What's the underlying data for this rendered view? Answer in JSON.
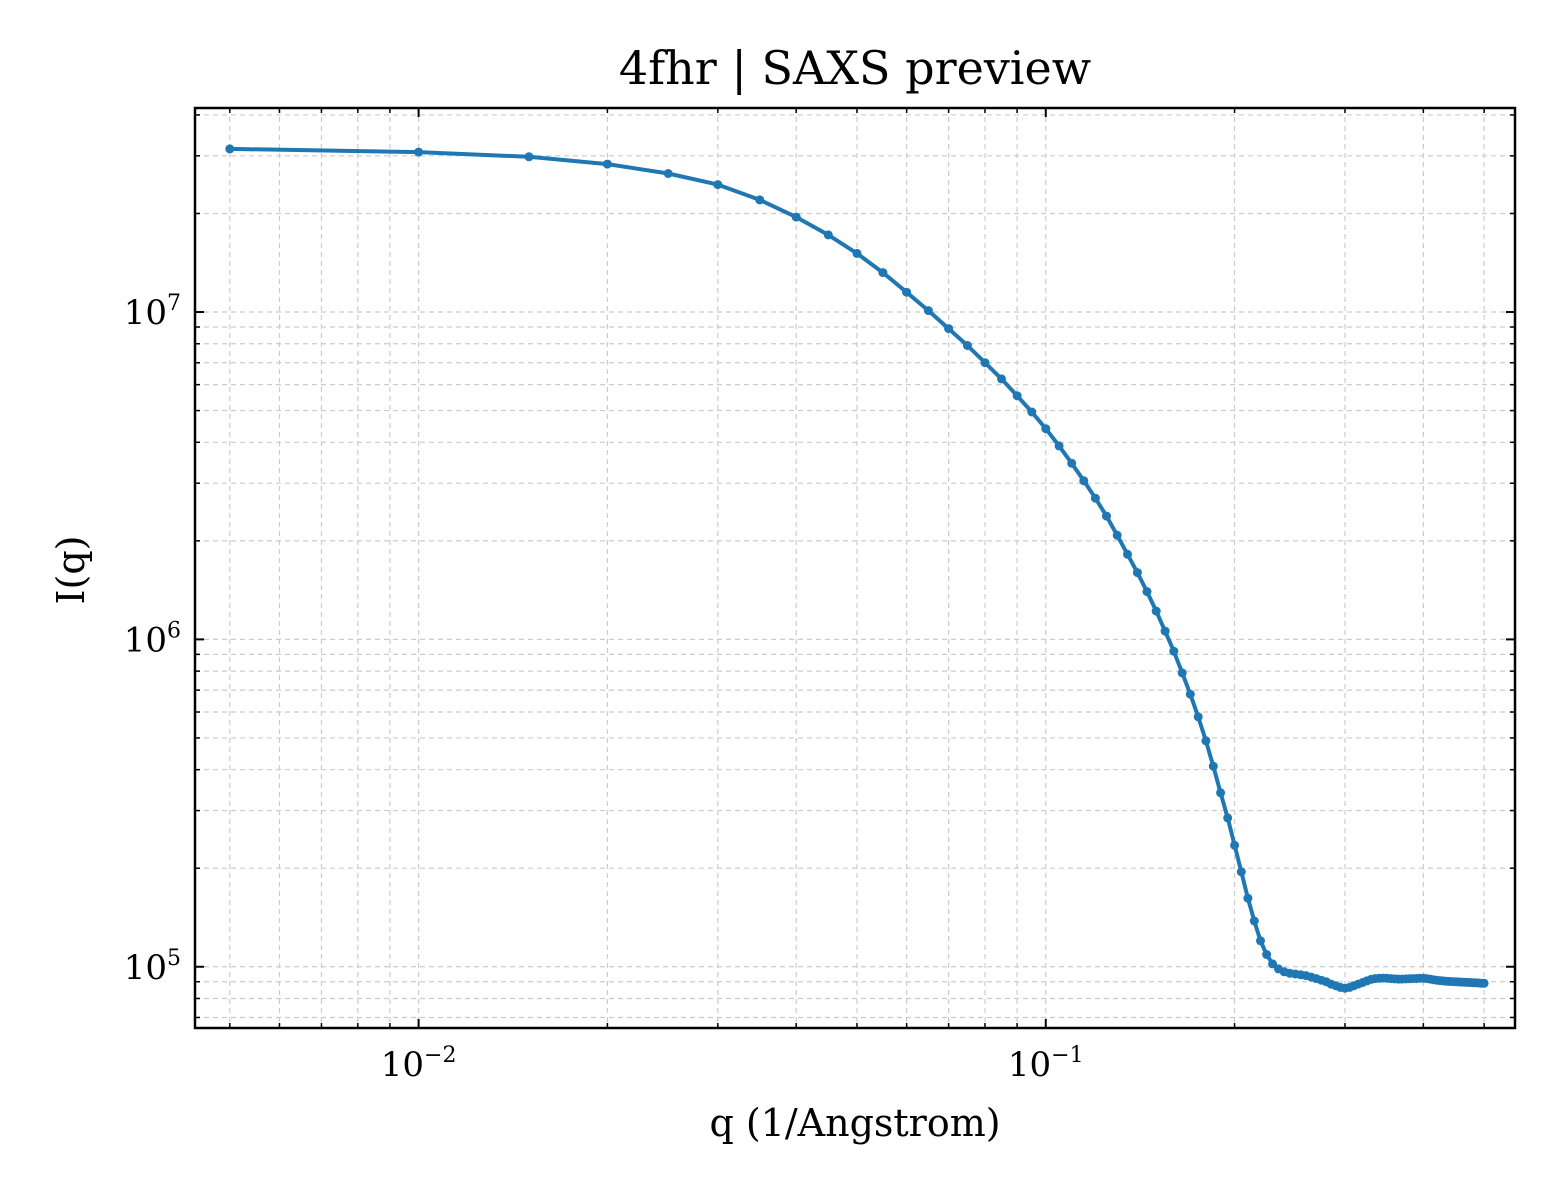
{
  "chart_data": {
    "type": "line",
    "title": "4fhr | SAXS preview",
    "xlabel": "q (1/Angstrom)",
    "ylabel": "I(q)",
    "xscale": "log",
    "yscale": "log",
    "xlim": [
      0.0044,
      0.56
    ],
    "ylim": [
      65000,
      42000000
    ],
    "grid": true,
    "grid_style": "dashed",
    "legend": "none",
    "line_color": "#1f77b4",
    "marker": "circle",
    "x_ticks": [
      {
        "value": 0.01,
        "base": "10",
        "exp": "−2"
      },
      {
        "value": 0.1,
        "base": "10",
        "exp": "−1"
      }
    ],
    "y_ticks": [
      {
        "value": 100000,
        "base": "10",
        "exp": "5"
      },
      {
        "value": 1000000,
        "base": "10",
        "exp": "6"
      },
      {
        "value": 10000000,
        "base": "10",
        "exp": "7"
      }
    ],
    "series": [
      {
        "x": [
          0.005,
          0.01,
          0.015,
          0.02,
          0.025,
          0.03,
          0.035,
          0.04,
          0.045,
          0.05,
          0.055,
          0.06,
          0.065,
          0.07,
          0.075,
          0.08,
          0.085,
          0.09,
          0.095,
          0.1,
          0.105,
          0.11,
          0.115,
          0.12,
          0.125,
          0.13,
          0.135,
          0.14,
          0.145,
          0.15,
          0.155,
          0.16,
          0.165,
          0.17,
          0.175,
          0.18,
          0.185,
          0.19,
          0.195,
          0.2,
          0.205,
          0.21,
          0.215,
          0.22,
          0.225,
          0.23,
          0.235,
          0.24,
          0.245,
          0.25,
          0.255,
          0.26,
          0.265,
          0.27,
          0.275,
          0.28,
          0.285,
          0.29,
          0.295,
          0.3,
          0.305,
          0.31,
          0.315,
          0.32,
          0.325,
          0.33,
          0.335,
          0.34,
          0.345,
          0.35,
          0.355,
          0.36,
          0.365,
          0.37,
          0.375,
          0.38,
          0.385,
          0.39,
          0.395,
          0.4,
          0.405,
          0.41,
          0.415,
          0.42,
          0.425,
          0.43,
          0.435,
          0.44,
          0.445,
          0.45,
          0.455,
          0.46,
          0.465,
          0.47,
          0.475,
          0.48,
          0.485,
          0.49,
          0.495,
          0.5
        ],
        "y": [
          31500000,
          30800000,
          29800000,
          28300000,
          26500000,
          24500000,
          22000000,
          19500000,
          17200000,
          15100000,
          13200000,
          11500000,
          10100000,
          8900000,
          7900000,
          7000000,
          6250000,
          5550000,
          4950000,
          4400000,
          3900000,
          3450000,
          3050000,
          2700000,
          2380000,
          2080000,
          1820000,
          1600000,
          1400000,
          1220000,
          1060000,
          920000,
          790000,
          680000,
          580000,
          490000,
          410000,
          340000,
          285000,
          235000,
          195000,
          162000,
          138000,
          120000,
          109000,
          102000,
          98500,
          96500,
          95500,
          95000,
          94500,
          94000,
          93000,
          92000,
          91000,
          90000,
          88500,
          87500,
          86500,
          86000,
          86500,
          87500,
          88500,
          89500,
          90500,
          91500,
          92000,
          92200,
          92300,
          92200,
          92000,
          91800,
          91700,
          91700,
          91800,
          91900,
          92000,
          92100,
          92200,
          92200,
          92000,
          91700,
          91300,
          91000,
          90700,
          90500,
          90300,
          90200,
          90100,
          90000,
          89900,
          89800,
          89700,
          89600,
          89500,
          89400,
          89300,
          89200,
          89100,
          89000
        ]
      }
    ]
  }
}
